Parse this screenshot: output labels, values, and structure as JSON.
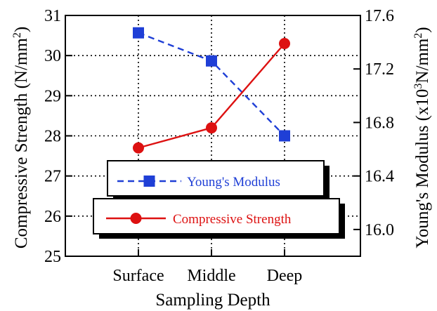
{
  "chart_data": {
    "type": "line",
    "categories": [
      "Surface",
      "Middle",
      "Deep"
    ],
    "xlabel": "Sampling Depth",
    "ylabel_left": {
      "main": "Compressive Strength (N/mm",
      "sup": "2",
      "tail": ")"
    },
    "ylabel_right": {
      "main": "Young's Modulus (x10",
      "sup1": "3",
      "mid": "N/mm",
      "sup2": "2",
      "tail": ")"
    },
    "left_axis": {
      "range": [
        25,
        31
      ],
      "ticks": [
        "25",
        "26",
        "27",
        "28",
        "29",
        "30",
        "31"
      ]
    },
    "right_axis": {
      "range": [
        15.8,
        17.6
      ],
      "ticks": [
        "16.0",
        "16.4",
        "16.8",
        "17.2",
        "17.6"
      ]
    },
    "grid": "dotted",
    "series": [
      {
        "name": "Young's Modulus",
        "axis": "right",
        "values": [
          17.47,
          17.26,
          16.7
        ],
        "color": "#1f3fd6",
        "line_style": "dashed",
        "marker": "square"
      },
      {
        "name": "Compressive Strength",
        "axis": "left",
        "values": [
          27.7,
          28.2,
          30.3
        ],
        "color": "#dd1111",
        "line_style": "solid",
        "marker": "circle"
      }
    ]
  }
}
